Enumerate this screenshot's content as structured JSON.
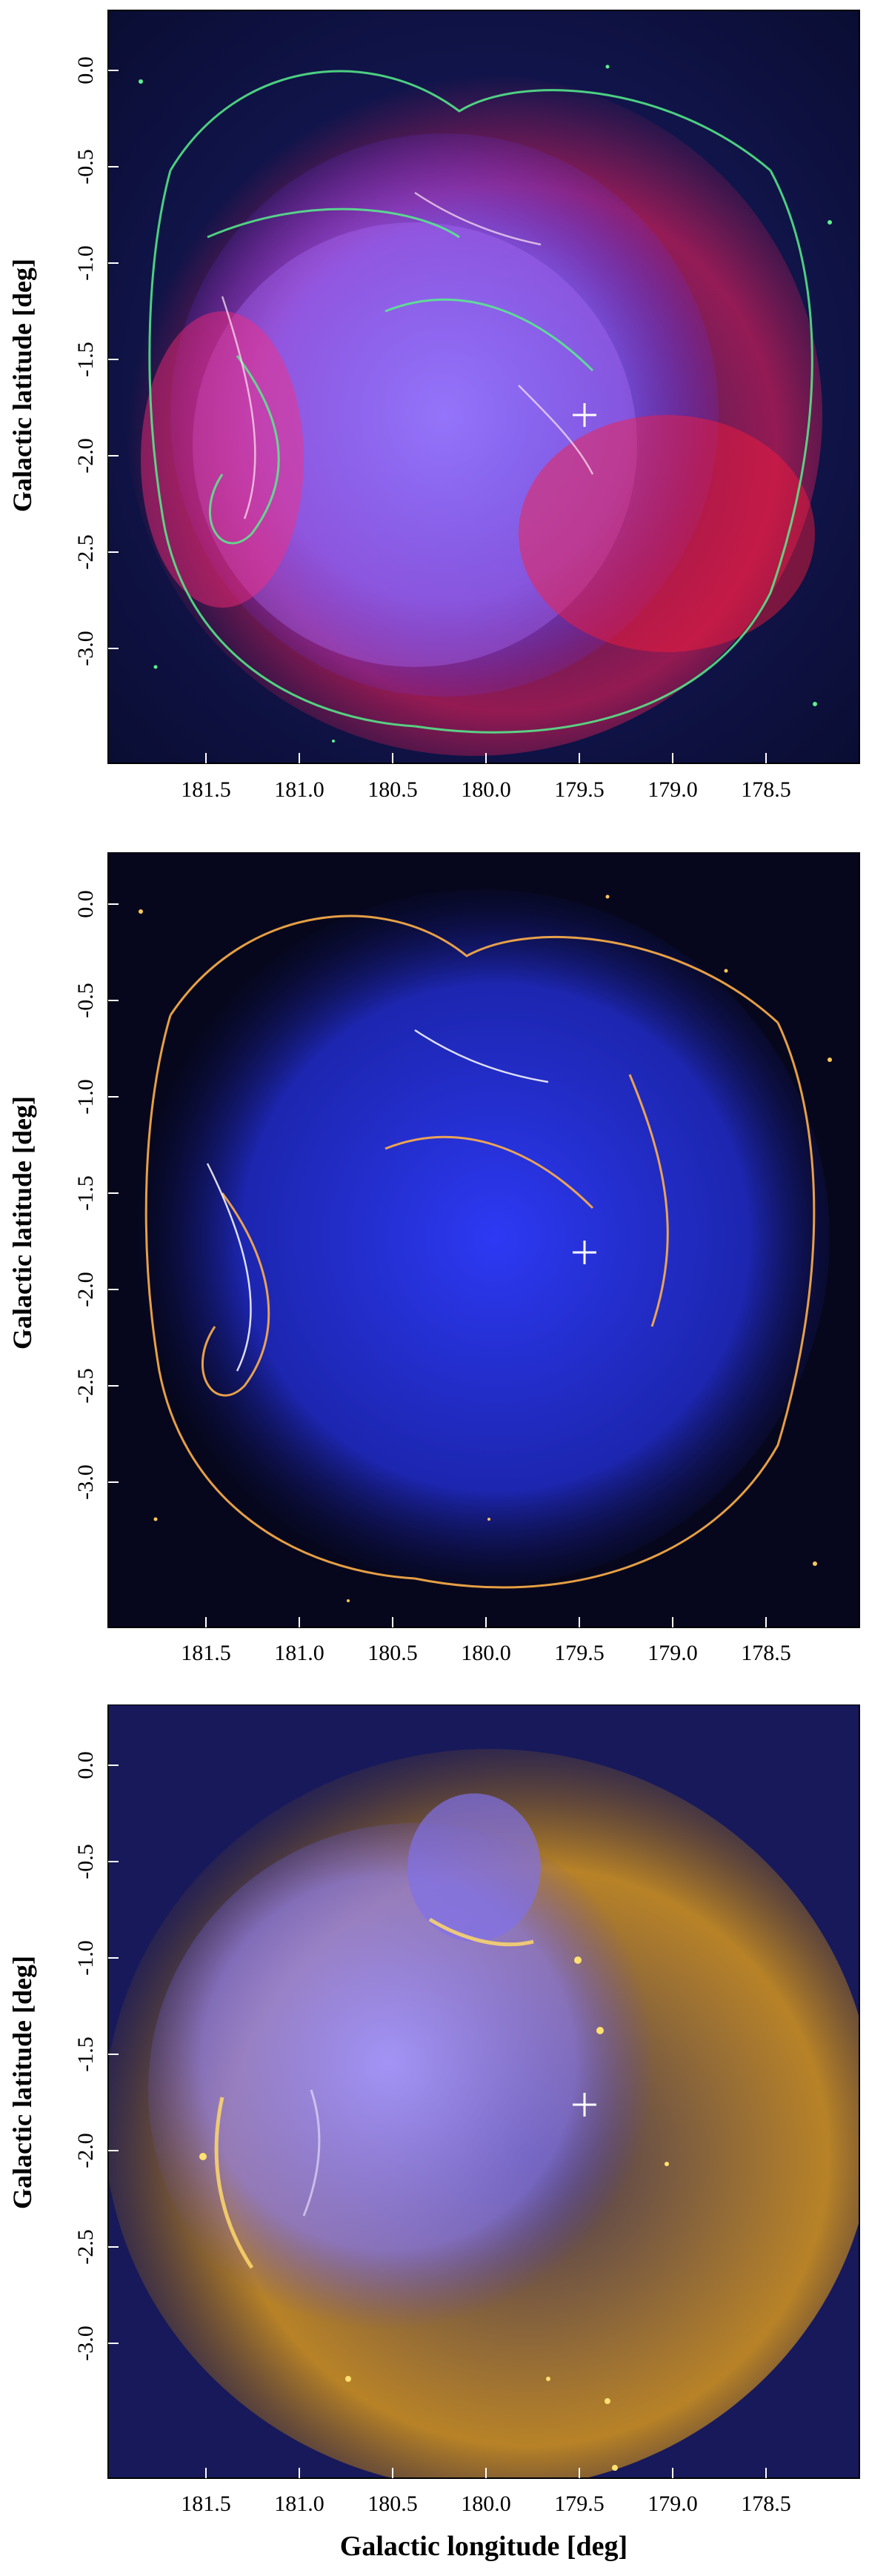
{
  "panels": [
    {
      "id": "panel-1",
      "ylabel": "Galactic latitude [deg]",
      "xlabel": "",
      "x_ticks": [
        "181.5",
        "181.0",
        "180.5",
        "180.0",
        "179.5",
        "179.0",
        "178.5"
      ],
      "y_ticks": [
        "0.0",
        "-0.5",
        "-1.0",
        "-1.5",
        "-2.0",
        "-2.5",
        "-3.0"
      ],
      "colors": {
        "background": "#0b0f3a",
        "glow": "#ff1f6a",
        "core": "#6a5cff",
        "filaments": "#46e08a"
      }
    },
    {
      "id": "panel-2",
      "ylabel": "Galactic latitude [deg]",
      "xlabel": "",
      "x_ticks": [
        "181.5",
        "181.0",
        "180.5",
        "180.0",
        "179.5",
        "179.0",
        "178.5"
      ],
      "y_ticks": [
        "0.0",
        "-0.5",
        "-1.0",
        "-1.5",
        "-2.0",
        "-2.5",
        "-3.0"
      ],
      "colors": {
        "background": "#050616",
        "core": "#2a36ff",
        "filaments": "#ffb347"
      }
    },
    {
      "id": "panel-3",
      "ylabel": "Galactic latitude [deg]",
      "xlabel": "Galactic longitude [deg]",
      "x_ticks": [
        "181.5",
        "181.0",
        "180.5",
        "180.0",
        "179.5",
        "179.0",
        "178.5"
      ],
      "y_ticks": [
        "0.0",
        "-0.5",
        "-1.0",
        "-1.5",
        "-2.0",
        "-2.5",
        "-3.0"
      ],
      "colors": {
        "background": "#161a5a",
        "glow": "#d99a22",
        "core": "#9a8cff",
        "filaments": "#ffd060"
      }
    }
  ]
}
